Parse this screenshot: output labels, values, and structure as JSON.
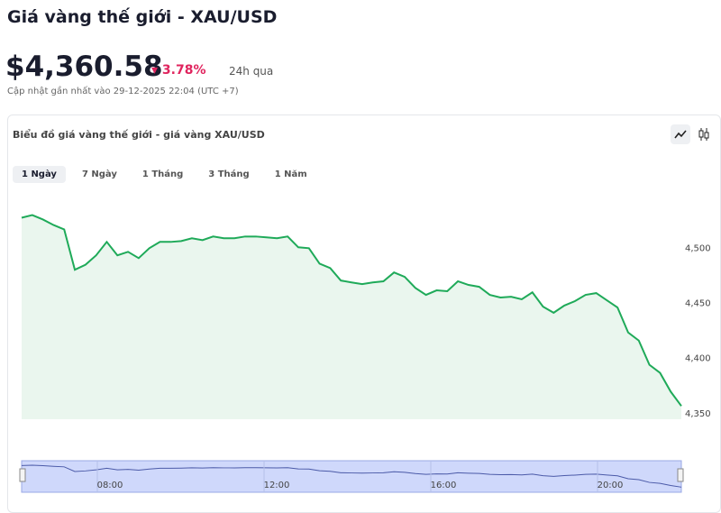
{
  "header": {
    "title": "Giá vàng thế giới - XAU/USD",
    "price": "$4,360.58",
    "change": "3.78%",
    "change_period": "24h qua",
    "updated": "Cập nhật gần nhất vào 29-12-2025 22:04 (UTC +7)"
  },
  "panel": {
    "title": "Biểu đồ giá vàng thế giới - giá vàng XAU/USD",
    "tabs": [
      "1 Ngày",
      "7 Ngày",
      "1 Tháng",
      "3 Tháng",
      "1 Năm"
    ]
  },
  "chart_data": {
    "type": "area",
    "color": "#1faa59",
    "fill": "#eaf6ee",
    "values": [
      4527.6,
      4530,
      4526,
      4521,
      4517,
      4480.5,
      4485,
      4493.5,
      4505.7,
      4493.5,
      4496.7,
      4491,
      4500,
      4505.7,
      4505.7,
      4506.5,
      4509,
      4507.3,
      4510.6,
      4509,
      4509,
      4510.6,
      4510.6,
      4509.8,
      4509,
      4510.6,
      4500.8,
      4500,
      4486,
      4482,
      4470.7,
      4469,
      4467.5,
      4469,
      4470,
      4478,
      4474,
      4464,
      4457.7,
      4461.8,
      4461,
      4470,
      4466.7,
      4465,
      4457.7,
      4455.3,
      4456,
      4453.7,
      4460,
      4447,
      4441.5,
      4448,
      4452,
      4457.7,
      4459.3,
      4452.8,
      4446.3,
      4423.6,
      4416.3,
      4394.3,
      4387,
      4370,
      4357
    ],
    "ylim": [
      4345,
      4537
    ],
    "yticks": [
      {
        "value": 4350,
        "label": "4,350"
      },
      {
        "value": 4400,
        "label": "4,400"
      },
      {
        "value": 4450,
        "label": "4,450"
      },
      {
        "value": 4500,
        "label": "4,500"
      }
    ],
    "navigator_labels": [
      "08:00",
      "12:00",
      "16:00",
      "20:00"
    ]
  }
}
